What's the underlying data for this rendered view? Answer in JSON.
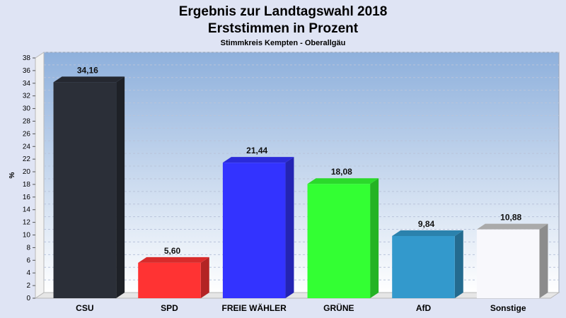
{
  "chart_data": {
    "type": "bar",
    "title": "Ergebnis zur Landtagswahl 2018",
    "title2": "Erststimmen in Prozent",
    "subtitle": "Stimmkreis Kempten - Oberallgäu",
    "ylabel": "%",
    "xlabel": "",
    "ylim": [
      0,
      38
    ],
    "ytick_step": 2,
    "grid": true,
    "categories": [
      "CSU",
      "SPD",
      "FREIE WÄHLER",
      "GRÜNE",
      "AfD",
      "Sonstige"
    ],
    "values": [
      34.16,
      5.6,
      21.44,
      18.08,
      9.84,
      10.88
    ],
    "value_labels": [
      "34,16",
      "5,60",
      "21,44",
      "18,08",
      "9,84",
      "10,88"
    ],
    "colors": [
      "#2b2f38",
      "#ff3333",
      "#3333ff",
      "#33ff33",
      "#3399cc",
      "#f8f8fc"
    ]
  }
}
